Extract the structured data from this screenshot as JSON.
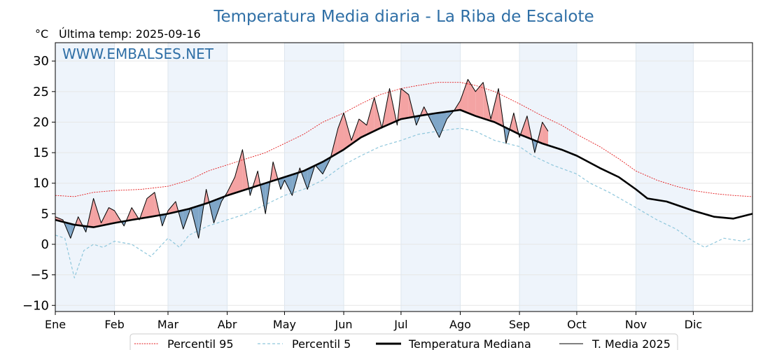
{
  "chart_data": {
    "type": "line",
    "title": "Temperatura Media diaria - La Riba de Escalote",
    "unit_label": "°C",
    "last_update": "Última temp: 2025-09-16",
    "watermark": "WWW.EMBALSES.NET",
    "ylim": [
      -11,
      33
    ],
    "yticks": [
      -10,
      -5,
      0,
      5,
      10,
      15,
      20,
      25,
      30
    ],
    "ytick_labels": [
      "−10",
      "−5",
      "0",
      "5",
      "10",
      "15",
      "20",
      "25",
      "30"
    ],
    "xlim": [
      0,
      365
    ],
    "months": [
      "Ene",
      "Feb",
      "Mar",
      "Abr",
      "May",
      "Jun",
      "Jul",
      "Ago",
      "Sep",
      "Oct",
      "Nov",
      "Dic"
    ],
    "month_starts": [
      0,
      31,
      59,
      90,
      120,
      151,
      181,
      212,
      243,
      273,
      304,
      334
    ],
    "grid": true,
    "legend_position": "bottom",
    "legend": [
      "Percentil 95",
      "Percentil 5",
      "Temperatura Mediana",
      "T. Media 2025"
    ],
    "colors": {
      "p95": "#e41a1c",
      "p5": "#8fc7dc",
      "median": "#000000",
      "current": "#000000",
      "above_fill": "#f4a3a3",
      "above_extreme": "#e8323c",
      "below_fill": "#7fa6c8",
      "below_extreme": "#1f5fa0",
      "title": "#2f6fa6",
      "band": "#eef4fb"
    },
    "series": [
      {
        "name": "Percentil 95",
        "key": "p95",
        "x": [
          0,
          10,
          20,
          31,
          45,
          59,
          70,
          80,
          90,
          100,
          110,
          120,
          130,
          140,
          151,
          160,
          170,
          181,
          190,
          200,
          212,
          220,
          230,
          243,
          255,
          265,
          273,
          285,
          295,
          304,
          315,
          325,
          334,
          345,
          355,
          365
        ],
        "y": [
          8.0,
          7.8,
          8.5,
          8.8,
          9.0,
          9.5,
          10.5,
          12.0,
          13.0,
          14.0,
          15.0,
          16.5,
          18.0,
          20.0,
          21.5,
          23.0,
          24.5,
          25.5,
          26.0,
          26.5,
          26.5,
          26.0,
          25.0,
          23.0,
          21.0,
          19.5,
          18.0,
          16.0,
          14.0,
          12.0,
          10.5,
          9.5,
          8.8,
          8.3,
          8.0,
          7.8
        ]
      },
      {
        "name": "Percentil 5",
        "key": "p5",
        "x": [
          0,
          5,
          10,
          15,
          20,
          25,
          31,
          40,
          50,
          59,
          65,
          70,
          80,
          90,
          100,
          110,
          120,
          130,
          140,
          151,
          160,
          170,
          181,
          190,
          200,
          212,
          220,
          230,
          243,
          250,
          260,
          273,
          280,
          290,
          304,
          315,
          325,
          334,
          340,
          350,
          360,
          365
        ],
        "y": [
          1.5,
          1.0,
          -5.5,
          -1.0,
          0.0,
          -0.5,
          0.5,
          0.0,
          -2.0,
          1.0,
          -0.5,
          1.5,
          3.0,
          4.0,
          5.0,
          6.5,
          8.0,
          9.0,
          10.5,
          13.0,
          14.5,
          16.0,
          17.0,
          18.0,
          18.5,
          19.0,
          18.5,
          17.0,
          16.0,
          14.5,
          13.0,
          11.5,
          10.0,
          8.5,
          6.0,
          4.0,
          2.5,
          0.5,
          -0.5,
          1.0,
          0.5,
          1.0
        ]
      },
      {
        "name": "Temperatura Mediana",
        "key": "median",
        "x": [
          0,
          10,
          20,
          31,
          40,
          50,
          59,
          70,
          80,
          90,
          100,
          110,
          120,
          130,
          140,
          151,
          160,
          170,
          181,
          190,
          200,
          212,
          220,
          230,
          243,
          255,
          265,
          273,
          285,
          295,
          304,
          310,
          320,
          334,
          345,
          355,
          365
        ],
        "y": [
          4.0,
          3.2,
          2.8,
          3.5,
          4.0,
          4.5,
          5.0,
          5.8,
          6.8,
          8.0,
          9.0,
          10.0,
          11.0,
          12.0,
          13.5,
          15.5,
          17.5,
          19.0,
          20.5,
          21.0,
          21.5,
          22.0,
          21.0,
          20.0,
          18.0,
          16.5,
          15.5,
          14.5,
          12.5,
          11.0,
          9.0,
          7.5,
          7.0,
          5.5,
          4.5,
          4.2,
          5.0
        ]
      },
      {
        "name": "T. Media 2025",
        "key": "current",
        "x": [
          0,
          4,
          8,
          12,
          16,
          20,
          24,
          28,
          31,
          36,
          40,
          44,
          48,
          52,
          56,
          59,
          63,
          67,
          71,
          75,
          79,
          83,
          87,
          90,
          94,
          98,
          102,
          106,
          110,
          114,
          118,
          120,
          124,
          128,
          132,
          136,
          140,
          144,
          148,
          151,
          155,
          159,
          163,
          167,
          171,
          175,
          179,
          181,
          185,
          189,
          193,
          197,
          201,
          205,
          209,
          212,
          216,
          220,
          224,
          228,
          232,
          236,
          240,
          243,
          247,
          251,
          255,
          258
        ],
        "y": [
          4.5,
          4.0,
          1.0,
          4.5,
          2.0,
          7.5,
          3.5,
          6.0,
          5.5,
          3.0,
          6.0,
          4.0,
          7.5,
          8.5,
          3.0,
          5.5,
          7.0,
          2.5,
          6.0,
          1.0,
          9.0,
          3.5,
          7.0,
          8.5,
          11.0,
          15.5,
          8.0,
          12.0,
          5.0,
          13.5,
          9.0,
          10.5,
          8.0,
          12.5,
          9.0,
          13.0,
          11.5,
          14.0,
          19.0,
          21.5,
          17.0,
          20.5,
          19.5,
          24.0,
          19.0,
          25.5,
          19.5,
          25.5,
          24.5,
          19.5,
          22.5,
          20.0,
          17.5,
          20.5,
          22.0,
          23.5,
          27.0,
          25.0,
          26.5,
          20.5,
          25.5,
          16.5,
          21.5,
          17.5,
          21.0,
          15.0,
          20.0,
          18.5
        ]
      }
    ]
  }
}
